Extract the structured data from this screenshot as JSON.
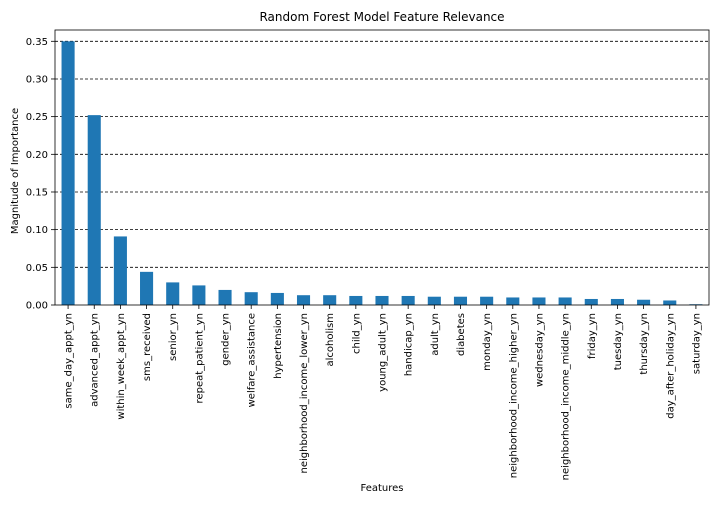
{
  "chart_data": {
    "type": "bar",
    "title": "Random Forest Model Feature Relevance",
    "xlabel": "Features",
    "ylabel": "Magnitude of Importance",
    "ylim": [
      0,
      0.365
    ],
    "yticks": [
      "0.00",
      "0.05",
      "0.10",
      "0.15",
      "0.20",
      "0.25",
      "0.30",
      "0.35"
    ],
    "grid": "horizontal-dashed",
    "bar_color": "#1f77b4",
    "categories": [
      "same_day_appt_yn",
      "advanced_appt_yn",
      "within_week_appt_yn",
      "sms_received",
      "senior_yn",
      "repeat_patient_yn",
      "gender_yn",
      "welfare_assistance",
      "hypertension",
      "neighborhood_income_lower_yn",
      "alcoholism",
      "child_yn",
      "young_adult_yn",
      "handicap_yn",
      "adult_yn",
      "diabetes",
      "monday_yn",
      "neighborhood_income_higher_yn",
      "wednesday_yn",
      "neighborhood_income_middle_yn",
      "friday_yn",
      "tuesday_yn",
      "thursday_yn",
      "day_after_holiday_yn",
      "saturday_yn"
    ],
    "values": [
      0.35,
      0.252,
      0.091,
      0.044,
      0.03,
      0.026,
      0.02,
      0.017,
      0.016,
      0.013,
      0.013,
      0.012,
      0.012,
      0.012,
      0.011,
      0.011,
      0.011,
      0.01,
      0.01,
      0.01,
      0.008,
      0.008,
      0.007,
      0.006,
      0.001
    ]
  }
}
